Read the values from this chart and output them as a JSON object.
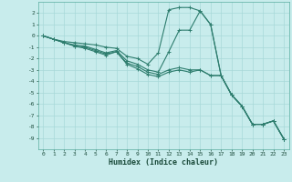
{
  "xlabel": "Humidex (Indice chaleur)",
  "ylabel": "",
  "bg_color": "#c8ecec",
  "grid_color": "#a8d8d8",
  "line_color": "#2e7d6e",
  "x_values": [
    0,
    1,
    2,
    3,
    4,
    5,
    6,
    7,
    8,
    9,
    10,
    11,
    12,
    13,
    14,
    15,
    16,
    17,
    18,
    19,
    20,
    21,
    22,
    23
  ],
  "series": [
    [
      0.0,
      -0.3,
      -0.5,
      -0.6,
      -0.7,
      -0.8,
      -1.0,
      -1.1,
      -1.8,
      -2.0,
      -2.5,
      -1.5,
      2.3,
      2.5,
      2.5,
      2.2,
      1.0,
      -3.5,
      -5.2,
      -6.2,
      -7.8,
      -7.8,
      -7.5,
      -9.1
    ],
    [
      0.0,
      -0.3,
      -0.6,
      -0.8,
      -0.9,
      -1.2,
      -1.5,
      -1.3,
      -2.2,
      -2.5,
      -3.0,
      -3.2,
      -1.4,
      0.5,
      0.5,
      2.2,
      1.0,
      -3.5,
      -5.2,
      -6.2,
      -7.8,
      -7.8,
      -7.5,
      -9.1
    ],
    [
      0.0,
      -0.3,
      -0.6,
      -0.9,
      -1.0,
      -1.3,
      -1.6,
      -1.4,
      -2.4,
      -2.7,
      -3.2,
      -3.4,
      -3.0,
      -2.8,
      -3.0,
      -3.0,
      -3.5,
      -3.5,
      -5.2,
      -6.2,
      -7.8,
      -7.8,
      -7.5,
      -9.1
    ],
    [
      0.0,
      -0.3,
      -0.6,
      -0.9,
      -1.1,
      -1.4,
      -1.7,
      -1.4,
      -2.5,
      -2.9,
      -3.4,
      -3.6,
      -3.2,
      -3.0,
      -3.2,
      -3.0,
      -3.5,
      -3.5,
      -5.2,
      -6.2,
      -7.8,
      -7.8,
      -7.5,
      -9.1
    ]
  ],
  "ylim": [
    -10,
    3
  ],
  "xlim": [
    -0.5,
    23.5
  ],
  "yticks": [
    2,
    1,
    0,
    -1,
    -2,
    -3,
    -4,
    -5,
    -6,
    -7,
    -8,
    -9
  ],
  "xticks": [
    0,
    1,
    2,
    3,
    4,
    5,
    6,
    7,
    8,
    9,
    10,
    11,
    12,
    13,
    14,
    15,
    16,
    17,
    18,
    19,
    20,
    21,
    22,
    23
  ]
}
